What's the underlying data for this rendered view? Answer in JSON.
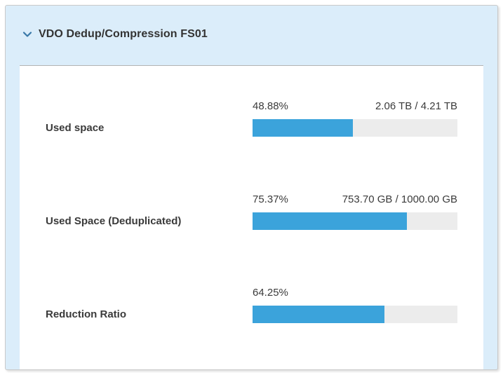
{
  "panel": {
    "title": "VDO Dedup/Compression FS01",
    "chevron_icon": "chevron-down",
    "expanded": true
  },
  "colors": {
    "panel_bg": "#dbedfa",
    "panel_border": "#c9c9c9",
    "card_bg": "#ffffff",
    "card_top_border": "#b3b3b3",
    "bar_fill": "#3ba3db",
    "bar_track": "#ececec",
    "chevron": "#3878a8",
    "text": "#3a3a3a"
  },
  "rows": [
    {
      "label": "Used space",
      "percent": "48.88%",
      "value": 48.88,
      "detail": "2.06 TB / 4.21 TB"
    },
    {
      "label": "Used Space (Deduplicated)",
      "percent": "75.37%",
      "value": 75.37,
      "detail": "753.70 GB / 1000.00 GB"
    },
    {
      "label": "Reduction Ratio",
      "percent": "64.25%",
      "value": 64.25,
      "detail": ""
    }
  ],
  "chart_data": {
    "type": "bar",
    "categories": [
      "Used space",
      "Used Space (Deduplicated)",
      "Reduction Ratio"
    ],
    "values": [
      48.88,
      75.37,
      64.25
    ],
    "value_labels": [
      "48.88%",
      "75.37%",
      "64.25%"
    ],
    "detail_labels": [
      "2.06 TB / 4.21 TB",
      "753.70 GB / 1000.00 GB",
      ""
    ],
    "title": "VDO Dedup/Compression FS01",
    "xlabel": "",
    "ylabel": "",
    "ylim": [
      0,
      100
    ],
    "unit": "%"
  }
}
